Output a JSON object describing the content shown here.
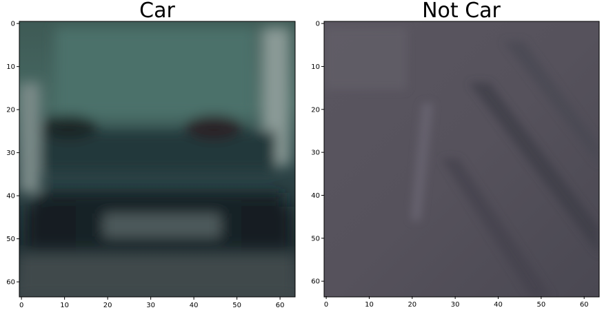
{
  "panels": [
    {
      "title": "Car",
      "x_ticks": [
        "0",
        "10",
        "20",
        "30",
        "40",
        "50",
        "60"
      ],
      "y_ticks": [
        "0",
        "10",
        "20",
        "30",
        "40",
        "50",
        "60"
      ]
    },
    {
      "title": "Not Car",
      "x_ticks": [
        "0",
        "10",
        "20",
        "30",
        "40",
        "50",
        "60"
      ],
      "y_ticks": [
        "0",
        "10",
        "20",
        "30",
        "40",
        "50",
        "60"
      ]
    }
  ]
}
